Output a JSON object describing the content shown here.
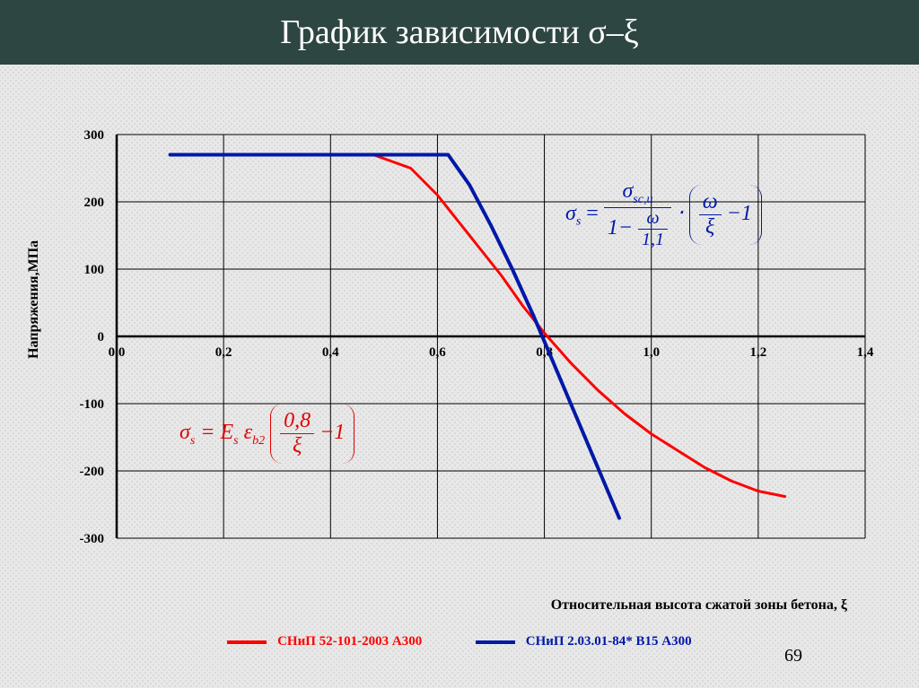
{
  "title": "График зависимости  σ–ξ",
  "page_number": "69",
  "chart": {
    "type": "line",
    "ylabel": "Напряжения,МПа",
    "xlabel": "Относительная высота сжатой зоны бетона, ξ",
    "xlim": [
      0.0,
      1.4
    ],
    "xtick_step": 0.2,
    "ylim": [
      -300,
      300
    ],
    "ytick_step": 100,
    "xticks": [
      "0,0",
      "0,2",
      "0,4",
      "0,6",
      "0,8",
      "1,0",
      "1,2",
      "1,4"
    ],
    "yticks": [
      "-300",
      "-200",
      "-100",
      "0",
      "100",
      "200",
      "300"
    ],
    "grid_color": "#000000",
    "grid_width": 1,
    "axis_color": "#000000",
    "axis_width": 2.5,
    "tick_fontsize": 15,
    "tick_fontweight": "bold",
    "label_fontsize": 16,
    "label_fontweight": "bold",
    "series": [
      {
        "name": "СНиП 52-101-2003  А300",
        "color": "#ff0000",
        "line_width": 3,
        "data": [
          [
            0.1,
            270
          ],
          [
            0.48,
            270
          ],
          [
            0.55,
            250
          ],
          [
            0.6,
            210
          ],
          [
            0.64,
            170
          ],
          [
            0.68,
            130
          ],
          [
            0.72,
            90
          ],
          [
            0.76,
            45
          ],
          [
            0.8,
            5
          ],
          [
            0.85,
            -40
          ],
          [
            0.9,
            -80
          ],
          [
            0.95,
            -115
          ],
          [
            1.0,
            -145
          ],
          [
            1.05,
            -170
          ],
          [
            1.1,
            -195
          ],
          [
            1.15,
            -215
          ],
          [
            1.2,
            -230
          ],
          [
            1.25,
            -238
          ]
        ]
      },
      {
        "name": "СНиП 2.03.01-84*  В15  А300",
        "color": "#0018a8",
        "line_width": 4,
        "data": [
          [
            0.1,
            270
          ],
          [
            0.62,
            270
          ],
          [
            0.66,
            225
          ],
          [
            0.7,
            165
          ],
          [
            0.74,
            100
          ],
          [
            0.78,
            30
          ],
          [
            0.82,
            -45
          ],
          [
            0.86,
            -120
          ],
          [
            0.9,
            -195
          ],
          [
            0.94,
            -270
          ]
        ]
      }
    ]
  },
  "formula_red": {
    "color": "#e00000",
    "lhs": "σ",
    "lhs_sub": "s",
    "eq": " = E",
    "e_sub": "s",
    "eps": "ε",
    "eps_sub": "b2",
    "paren_num": "0,8",
    "paren_denom": "ξ",
    "paren_tail": " −1"
  },
  "formula_blue": {
    "color": "#0018a8",
    "lhs": "σ",
    "lhs_sub": "s",
    "frac1_num": "σ",
    "frac1_num_sub": "sc,u",
    "frac1_den_lead": "1− ",
    "frac1_den_num": "ω",
    "frac1_den_den": "1,1",
    "mid": " ⋅ ",
    "paren_num": "ω",
    "paren_den": "ξ",
    "paren_tail": " −1"
  },
  "legend_items": [
    {
      "label": "СНиП 52-101-2003  А300",
      "color": "#ff0000"
    },
    {
      "label": "СНиП 2.03.01-84*  В15  А300",
      "color": "#0018a8"
    }
  ]
}
